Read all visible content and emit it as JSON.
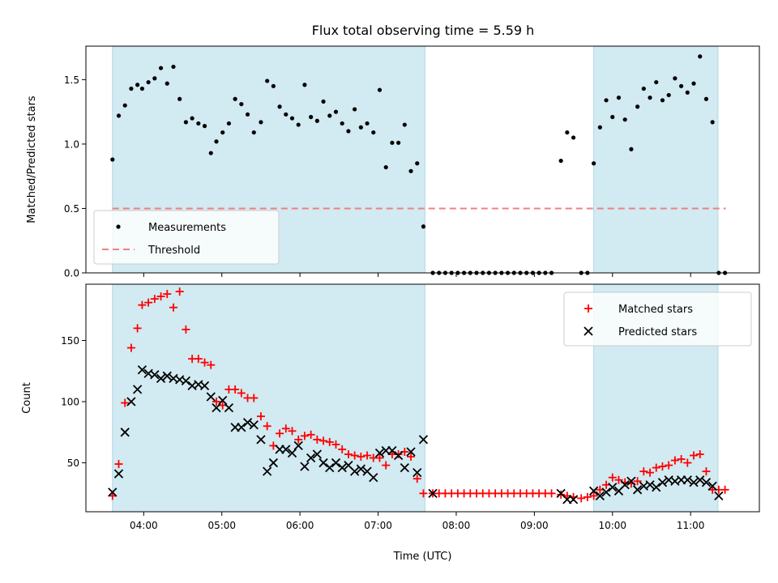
{
  "chart_data": {
    "type": "scatter",
    "title": "Flux total observing time = 5.59 h",
    "xlabel": "Time (UTC)",
    "x_tick_labels": [
      "04:00",
      "05:00",
      "06:00",
      "07:00",
      "08:00",
      "09:00",
      "10:00",
      "11:00"
    ],
    "x_ticks_hours": [
      4,
      5,
      6,
      7,
      8,
      9,
      10,
      11
    ],
    "xlim_hours": [
      3.26,
      11.88
    ],
    "shaded_intervals_hours": [
      [
        3.6,
        7.6
      ],
      [
        9.76,
        11.35
      ]
    ],
    "shade_color": "#add8e6",
    "panels": [
      {
        "ylabel": "Matched/Predicted stars",
        "ylim": [
          0,
          1.76
        ],
        "y_ticks": [
          0.0,
          0.5,
          1.0,
          1.5
        ],
        "y_tick_labels": [
          "0.0",
          "0.5",
          "1.0",
          "1.5"
        ],
        "legend_position": "lower-left",
        "threshold": {
          "name": "Threshold",
          "y": 0.5,
          "x_range_hours": [
            3.6,
            11.45
          ],
          "color": "#f08080"
        },
        "series": [
          {
            "name": "Measurements",
            "marker": "dot",
            "color": "#000000",
            "x_hours": [
              3.6,
              3.68,
              3.76,
              3.84,
              3.92,
              3.98,
              4.06,
              4.14,
              4.22,
              4.3,
              4.38,
              4.46,
              4.54,
              4.62,
              4.7,
              4.78,
              4.86,
              4.93,
              5.01,
              5.09,
              5.17,
              5.25,
              5.33,
              5.41,
              5.5,
              5.58,
              5.66,
              5.74,
              5.82,
              5.9,
              5.98,
              6.06,
              6.14,
              6.22,
              6.3,
              6.38,
              6.46,
              6.54,
              6.62,
              6.7,
              6.78,
              6.86,
              6.94,
              7.02,
              7.1,
              7.18,
              7.26,
              7.34,
              7.42,
              7.5,
              7.58,
              7.7,
              7.78,
              7.86,
              7.94,
              8.02,
              8.1,
              8.18,
              8.26,
              8.34,
              8.42,
              8.5,
              8.58,
              8.66,
              8.74,
              8.82,
              8.9,
              8.98,
              9.06,
              9.14,
              9.22,
              9.34,
              9.42,
              9.5,
              9.6,
              9.68,
              9.76,
              9.84,
              9.92,
              10.0,
              10.08,
              10.16,
              10.24,
              10.32,
              10.4,
              10.48,
              10.56,
              10.64,
              10.72,
              10.8,
              10.88,
              10.96,
              11.04,
              11.12,
              11.2,
              11.28,
              11.36,
              11.44
            ],
            "y": [
              0.88,
              1.22,
              1.3,
              1.43,
              1.46,
              1.43,
              1.48,
              1.51,
              1.59,
              1.47,
              1.6,
              1.35,
              1.17,
              1.2,
              1.16,
              1.14,
              0.93,
              1.02,
              1.09,
              1.16,
              1.35,
              1.31,
              1.23,
              1.09,
              1.17,
              1.49,
              1.45,
              1.29,
              1.23,
              1.2,
              1.15,
              1.46,
              1.21,
              1.18,
              1.33,
              1.22,
              1.25,
              1.16,
              1.1,
              1.27,
              1.13,
              1.16,
              1.09,
              1.42,
              0.82,
              1.01,
              1.01,
              1.15,
              0.79,
              0.85,
              0.36,
              0,
              0,
              0,
              0,
              0,
              0,
              0,
              0,
              0,
              0,
              0,
              0,
              0,
              0,
              0,
              0,
              0,
              0,
              0,
              0,
              0.87,
              1.09,
              1.05,
              0,
              0,
              0.85,
              1.13,
              1.34,
              1.21,
              1.36,
              1.19,
              0.96,
              1.29,
              1.43,
              1.36,
              1.48,
              1.34,
              1.38,
              1.51,
              1.45,
              1.4,
              1.47,
              1.68,
              1.35,
              1.17,
              0,
              0
            ]
          }
        ]
      },
      {
        "ylabel": "Count",
        "ylim": [
          10,
          196
        ],
        "y_ticks": [
          50,
          100,
          150
        ],
        "y_tick_labels": [
          "50",
          "100",
          "150"
        ],
        "legend_position": "upper-right",
        "series": [
          {
            "name": "Matched stars",
            "marker": "plus",
            "color": "#ff0000",
            "x_hours": [
              3.6,
              3.68,
              3.76,
              3.84,
              3.92,
              3.98,
              4.06,
              4.14,
              4.22,
              4.3,
              4.38,
              4.46,
              4.54,
              4.62,
              4.7,
              4.78,
              4.86,
              4.93,
              5.01,
              5.09,
              5.17,
              5.25,
              5.33,
              5.41,
              5.5,
              5.58,
              5.66,
              5.74,
              5.82,
              5.9,
              5.98,
              6.06,
              6.14,
              6.22,
              6.3,
              6.38,
              6.46,
              6.54,
              6.62,
              6.7,
              6.78,
              6.86,
              6.94,
              7.02,
              7.1,
              7.18,
              7.26,
              7.34,
              7.42,
              7.5,
              7.58,
              7.7,
              7.78,
              7.86,
              7.94,
              8.02,
              8.1,
              8.18,
              8.26,
              8.34,
              8.42,
              8.5,
              8.58,
              8.66,
              8.74,
              8.82,
              8.9,
              8.98,
              9.06,
              9.14,
              9.22,
              9.34,
              9.42,
              9.5,
              9.6,
              9.68,
              9.76,
              9.84,
              9.92,
              10.0,
              10.08,
              10.16,
              10.24,
              10.32,
              10.4,
              10.48,
              10.56,
              10.64,
              10.72,
              10.8,
              10.88,
              10.96,
              11.04,
              11.12,
              11.2,
              11.28,
              11.36,
              11.44
            ],
            "y": [
              23,
              49,
              99,
              144,
              160,
              179,
              181,
              184,
              186,
              188,
              177,
              190,
              159,
              135,
              135,
              132,
              130,
              100,
              97,
              110,
              110,
              107,
              103,
              103,
              88,
              80,
              64,
              74,
              78,
              76,
              69,
              72,
              73,
              69,
              68,
              67,
              65,
              61,
              57,
              56,
              55,
              56,
              54,
              54,
              48,
              57,
              57,
              59,
              55,
              37,
              25,
              25,
              25,
              25,
              25,
              25,
              25,
              25,
              25,
              25,
              25,
              25,
              25,
              25,
              25,
              25,
              25,
              25,
              25,
              25,
              25,
              24,
              23,
              22,
              21,
              22,
              23,
              28,
              32,
              38,
              36,
              34,
              33,
              35,
              43,
              42,
              46,
              47,
              48,
              52,
              53,
              50,
              56,
              57,
              43,
              28,
              28,
              28
            ]
          },
          {
            "name": "Predicted stars",
            "marker": "x",
            "color": "#000000",
            "x_hours": [
              3.6,
              3.68,
              3.76,
              3.84,
              3.92,
              3.98,
              4.06,
              4.14,
              4.22,
              4.3,
              4.38,
              4.46,
              4.54,
              4.62,
              4.7,
              4.78,
              4.86,
              4.93,
              5.01,
              5.09,
              5.17,
              5.25,
              5.33,
              5.41,
              5.5,
              5.58,
              5.66,
              5.74,
              5.82,
              5.9,
              5.98,
              6.06,
              6.14,
              6.22,
              6.3,
              6.38,
              6.46,
              6.54,
              6.62,
              6.7,
              6.78,
              6.86,
              6.94,
              7.02,
              7.1,
              7.18,
              7.26,
              7.34,
              7.42,
              7.5,
              7.58,
              7.7,
              9.34,
              9.42,
              9.5,
              9.76,
              9.84,
              9.92,
              10.0,
              10.08,
              10.16,
              10.24,
              10.32,
              10.4,
              10.48,
              10.56,
              10.64,
              10.72,
              10.8,
              10.88,
              10.96,
              11.04,
              11.12,
              11.2,
              11.28,
              11.36
            ],
            "y": [
              26,
              41,
              75,
              100,
              110,
              126,
              123,
              122,
              119,
              121,
              119,
              118,
              117,
              113,
              114,
              113,
              104,
              95,
              101,
              95,
              79,
              79,
              83,
              81,
              69,
              43,
              50,
              61,
              61,
              58,
              64,
              47,
              54,
              57,
              50,
              46,
              50,
              46,
              48,
              43,
              45,
              43,
              38,
              58,
              60,
              60,
              56,
              46,
              59,
              42,
              69,
              25,
              25,
              20,
              20,
              27,
              23,
              26,
              30,
              27,
              32,
              35,
              28,
              31,
              32,
              30,
              34,
              36,
              35,
              36,
              36,
              34,
              36,
              34,
              31,
              23
            ]
          }
        ]
      }
    ]
  }
}
